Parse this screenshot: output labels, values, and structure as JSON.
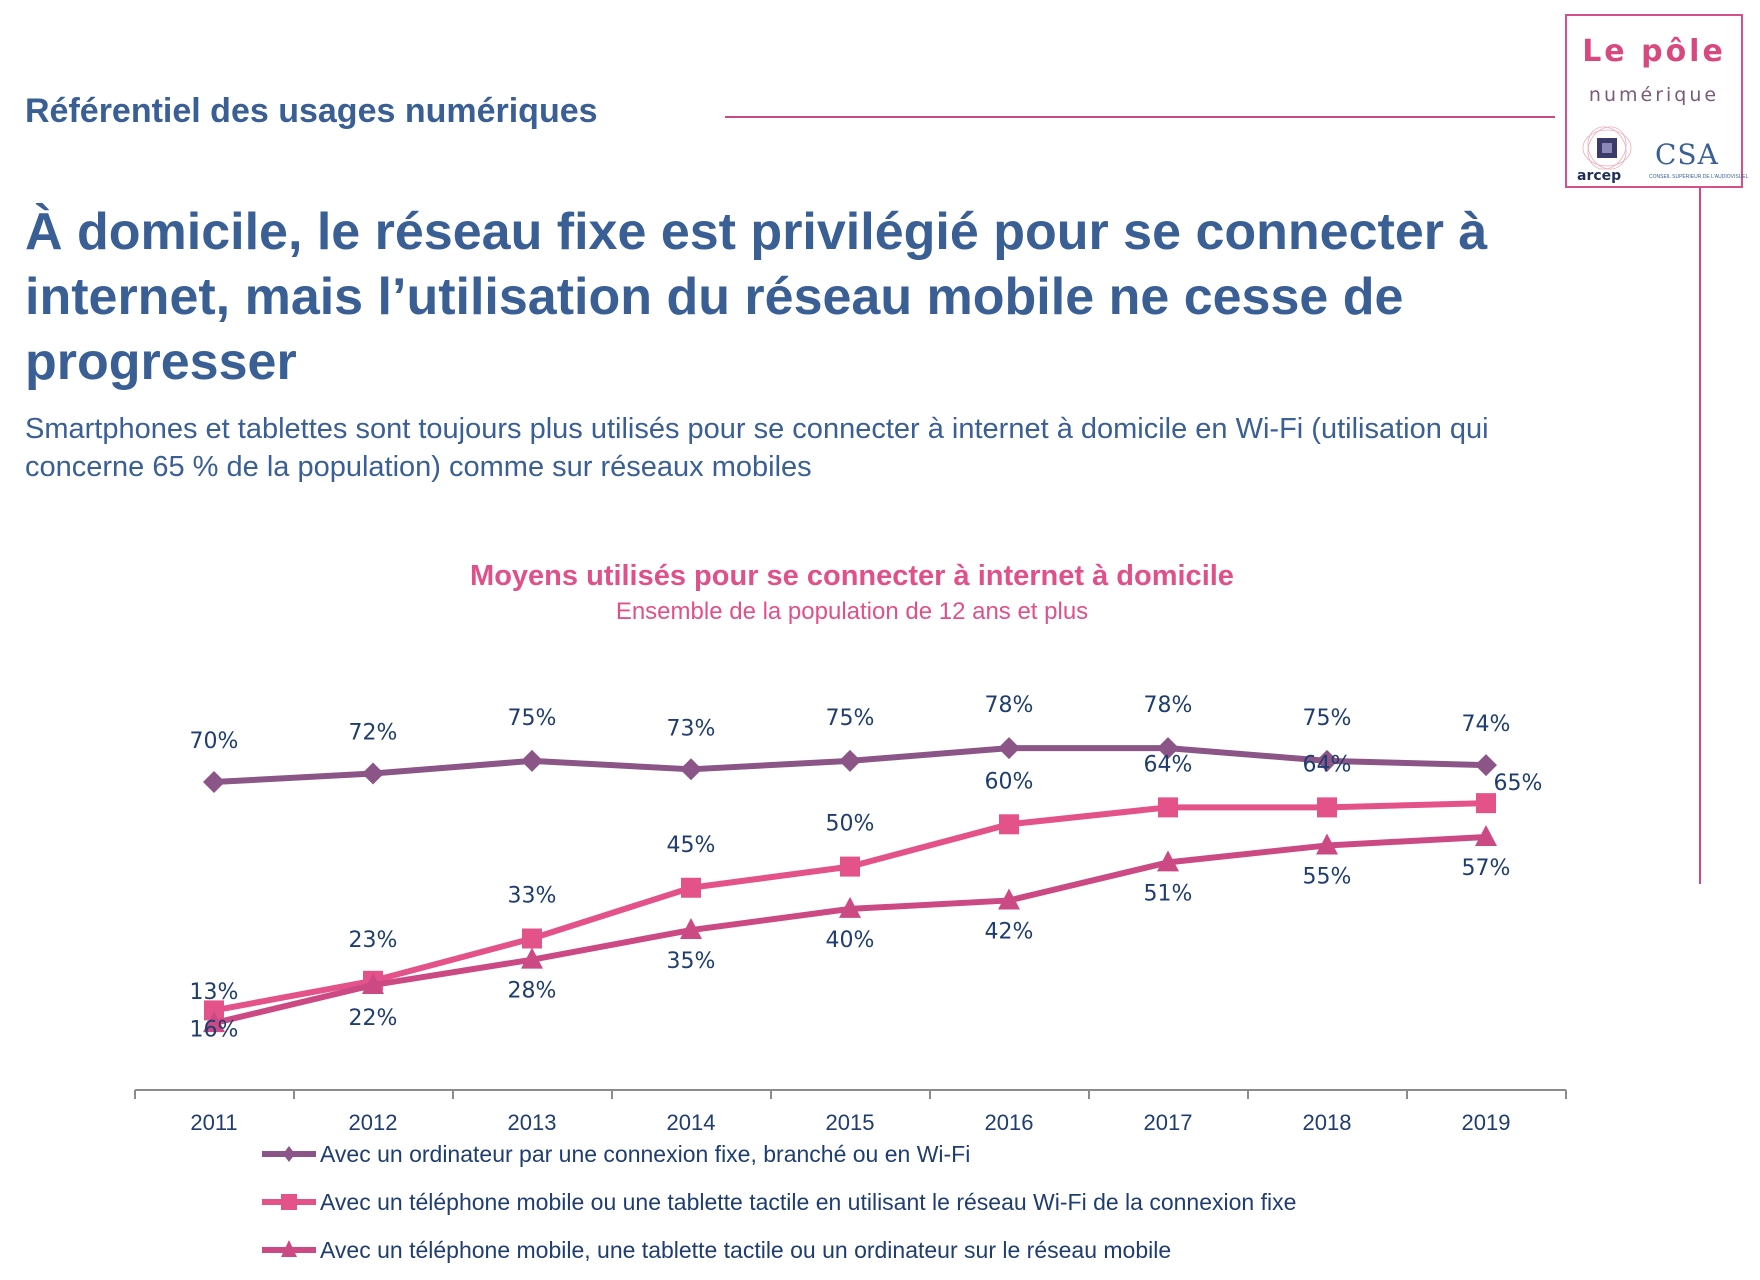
{
  "header": {
    "section_title": "Référentiel des usages numériques",
    "logo": {
      "line1": "Le pôle",
      "line2": "numérique",
      "partner1": "arcep",
      "partner2": "CSA",
      "partner2_sub": "CONSEIL SUPÉRIEUR DE L'AUDIOVISUEL"
    }
  },
  "main": {
    "title": "À domicile, le réseau fixe est privilégié pour se connecter à internet, mais l’utilisation du réseau mobile ne cesse de progresser",
    "subtitle": "Smartphones et tablettes sont toujours plus utilisés pour se connecter à internet à domicile en Wi-Fi (utilisation qui concerne 65 % de la population) comme sur réseaux mobiles"
  },
  "colors": {
    "brand_blue": "#3a5f95",
    "accent_pink": "#e0508a",
    "series_computer": "#8b5587",
    "series_wifi": "#e4528a",
    "series_mobile": "#cc4a84"
  },
  "chart_data": {
    "type": "line",
    "title": "Moyens utilisés pour se connecter à internet à domicile",
    "subtitle": "Ensemble de la population de 12 ans et plus",
    "xlabel": "",
    "ylabel": "",
    "categories": [
      "2011",
      "2012",
      "2013",
      "2014",
      "2015",
      "2016",
      "2017",
      "2018",
      "2019"
    ],
    "ylim": [
      0,
      100
    ],
    "grid": false,
    "legend_position": "bottom",
    "series": [
      {
        "name": "Avec un ordinateur par une connexion fixe, branché ou en Wi-Fi",
        "marker": "diamond",
        "values": [
          70,
          72,
          75,
          73,
          75,
          78,
          78,
          75,
          74
        ],
        "labels": [
          "70%",
          "72%",
          "75%",
          "73%",
          "75%",
          "78%",
          "78%",
          "75%",
          "74%"
        ]
      },
      {
        "name": "Avec un téléphone mobile ou une tablette tactile en utilisant le réseau Wi-Fi de la connexion fixe",
        "marker": "square",
        "values": [
          16,
          23,
          33,
          45,
          50,
          60,
          64,
          64,
          65
        ],
        "labels": [
          "16%",
          "23%",
          "33%",
          "45%",
          "50%",
          "60%",
          "64%",
          "64%",
          "65%"
        ]
      },
      {
        "name": "Avec un téléphone mobile, une tablette tactile ou un ordinateur sur le réseau mobile",
        "marker": "triangle",
        "values": [
          13,
          22,
          28,
          35,
          40,
          42,
          51,
          55,
          57
        ],
        "labels": [
          "13%",
          "22%",
          "28%",
          "35%",
          "40%",
          "42%",
          "51%",
          "55%",
          "57%"
        ]
      }
    ]
  }
}
